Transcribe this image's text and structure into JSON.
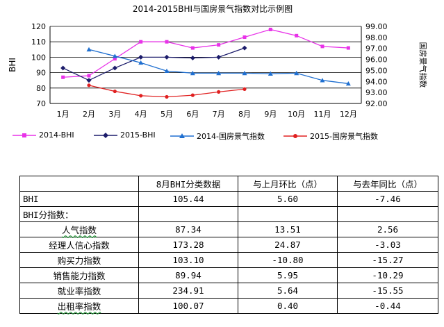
{
  "chart_data": {
    "type": "line",
    "title": "2014-2015BHI与国房景气指数对比示例图",
    "categories": [
      "1月",
      "2月",
      "3月",
      "4月",
      "5月",
      "6月",
      "7月",
      "8月",
      "9月",
      "10月",
      "11月",
      "12月"
    ],
    "ylabel": "BHI",
    "y2label": "国房景气指数",
    "ylim": [
      70,
      120
    ],
    "yticks": [
      "70",
      "80",
      "90",
      "100",
      "110",
      "120"
    ],
    "y2lim": [
      92,
      99
    ],
    "y2ticks": [
      "92.00",
      "93.00",
      "94.00",
      "95.00",
      "96.00",
      "97.00",
      "98.00",
      "99.00"
    ],
    "grid": "horizontal",
    "legend_position": "bottom",
    "series": [
      {
        "name": "2014-BHI",
        "axis": "left",
        "color": "#e832e8",
        "marker": "square",
        "values": [
          87,
          88,
          99,
          110,
          110,
          106,
          108,
          113,
          118,
          114,
          107,
          106
        ]
      },
      {
        "name": "2015-BHI",
        "axis": "left",
        "color": "#1c1c6b",
        "marker": "diamond",
        "values": [
          93,
          85,
          93,
          100,
          100,
          99.5,
          100,
          106,
          null,
          null,
          null,
          null
        ]
      },
      {
        "name": "2014-国房景气指数",
        "axis": "right",
        "color": "#1f6fd0",
        "marker": "triangle",
        "values": [
          null,
          96.9,
          96.3,
          95.7,
          94.95,
          94.75,
          94.75,
          94.75,
          94.7,
          94.75,
          94.1,
          93.8
        ]
      },
      {
        "name": "2015-国房景气指数",
        "axis": "right",
        "color": "#e02020",
        "marker": "circle",
        "values": [
          null,
          93.65,
          93.1,
          92.7,
          92.6,
          92.75,
          93.05,
          93.3,
          null,
          null,
          null,
          null
        ]
      }
    ]
  },
  "table": {
    "headers": [
      "",
      "8月BHI分类数据",
      "与上月环比（点）",
      "与去年同比（点）"
    ],
    "rows": [
      {
        "name": "BHI",
        "value": "105.44",
        "mom": "5.60",
        "yoy": "-7.46"
      },
      {
        "name": "人气指数",
        "value": "87.34",
        "mom": "13.51",
        "yoy": "2.56"
      },
      {
        "name": "经理人信心指数",
        "value": "173.28",
        "mom": "24.87",
        "yoy": "-3.03"
      },
      {
        "name": "购买力指数",
        "value": "103.10",
        "mom": "-10.80",
        "yoy": "-15.27"
      },
      {
        "name": "销售能力指数",
        "value": "89.94",
        "mom": "5.95",
        "yoy": "-10.29"
      },
      {
        "name": "就业率指数",
        "value": "234.91",
        "mom": "5.64",
        "yoy": "-15.55"
      },
      {
        "name": "出租率指数",
        "value": "100.07",
        "mom": "0.40",
        "yoy": "-0.44"
      }
    ],
    "subheading": "BHI分指数："
  }
}
